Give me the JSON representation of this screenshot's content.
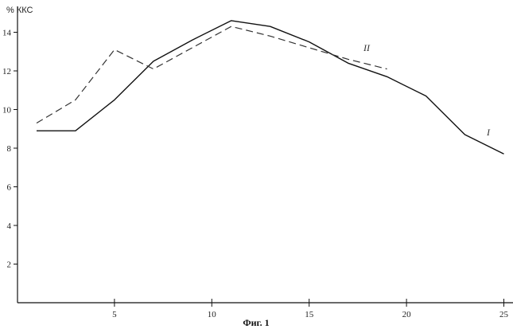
{
  "chart_data": {
    "type": "line",
    "ylabel": "% ККС",
    "caption": "Фиг. 1",
    "xlim": [
      0,
      25
    ],
    "ylim": [
      0,
      15
    ],
    "xticks": [
      5,
      10,
      15,
      20,
      25
    ],
    "yticks": [
      2,
      4,
      6,
      8,
      10,
      12,
      14
    ],
    "grid": false,
    "series": [
      {
        "name": "I",
        "style": "solid",
        "color": "#111111",
        "x": [
          1,
          3,
          5,
          7,
          9,
          11,
          13,
          15,
          17,
          19,
          21,
          23,
          25
        ],
        "y": [
          8.9,
          8.9,
          10.5,
          12.5,
          13.6,
          14.6,
          14.3,
          13.5,
          12.4,
          11.7,
          10.7,
          8.7,
          7.7
        ]
      },
      {
        "name": "II",
        "style": "dashed",
        "color": "#333333",
        "x": [
          1,
          3,
          5,
          7,
          9,
          11,
          13,
          15,
          17,
          19
        ],
        "y": [
          9.3,
          10.5,
          13.1,
          12.1,
          13.2,
          14.3,
          13.8,
          13.2,
          12.6,
          12.1
        ]
      }
    ]
  }
}
